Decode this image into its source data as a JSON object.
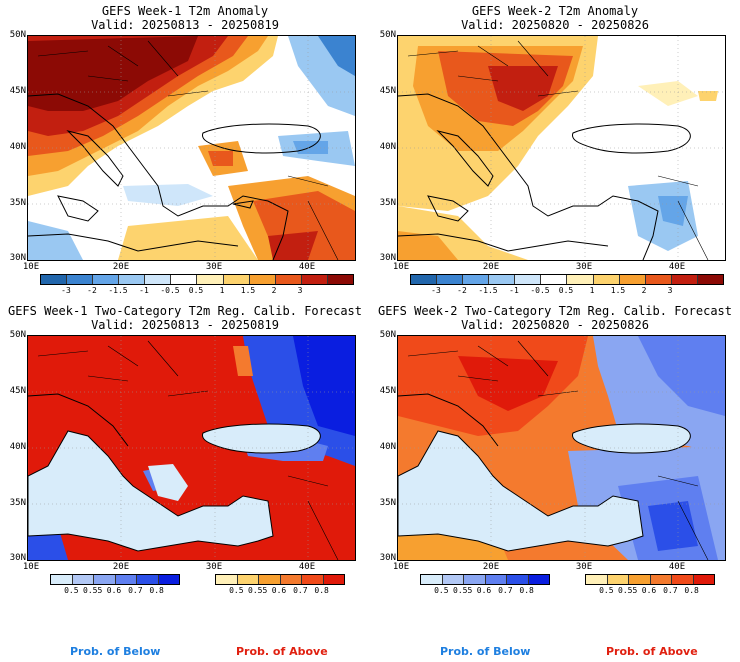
{
  "panels": [
    {
      "title": "GEFS Week-1 T2m Anomaly",
      "valid": "Valid: 20250813 - 20250819"
    },
    {
      "title": "GEFS Week-2 T2m Anomaly",
      "valid": "Valid: 20250820 - 20250826"
    },
    {
      "title": "GEFS Week-1 Two-Category T2m Reg. Calib. Forecast",
      "valid": "Valid: 20250813 - 20250819"
    },
    {
      "title": "GEFS Week-2 Two-Category T2m Reg. Calib. Forecast",
      "valid": "Valid: 20250820 - 20250826"
    }
  ],
  "lat_labels": [
    "50N",
    "45N",
    "40N",
    "35N",
    "30N"
  ],
  "lon_labels": [
    "10E",
    "20E",
    "30E",
    "40E"
  ],
  "anomaly_colorbar": {
    "ticks": [
      "-3",
      "-2",
      "-1.5",
      "-1",
      "-0.5",
      "0.5",
      "1",
      "1.5",
      "2",
      "3"
    ],
    "colors": [
      "#2166ac",
      "#3b83d0",
      "#64a5e8",
      "#9ac8f2",
      "#cfe6fa",
      "#ffffff",
      "#fff0b8",
      "#fdd36e",
      "#f7a030",
      "#e8581c",
      "#c21f10",
      "#8c0a05"
    ]
  },
  "below_colorbar": {
    "ticks": [
      "0.5",
      "0.55",
      "0.6",
      "0.7",
      "0.8"
    ],
    "colors": [
      "#d8ecfa",
      "#b2c8f5",
      "#8aa6f2",
      "#5f7ff0",
      "#2b4fe8",
      "#0a1ee0"
    ]
  },
  "above_colorbar": {
    "ticks": [
      "0.5",
      "0.55",
      "0.6",
      "0.7",
      "0.8"
    ],
    "colors": [
      "#fff0b8",
      "#fdd36e",
      "#f7a030",
      "#f47a2e",
      "#f04a1a",
      "#e01a0a"
    ]
  },
  "footer": {
    "below": "Prob. of Below",
    "above": "Prob. of Above",
    "below_color": "#1e7fe0",
    "above_color": "#e02010"
  }
}
